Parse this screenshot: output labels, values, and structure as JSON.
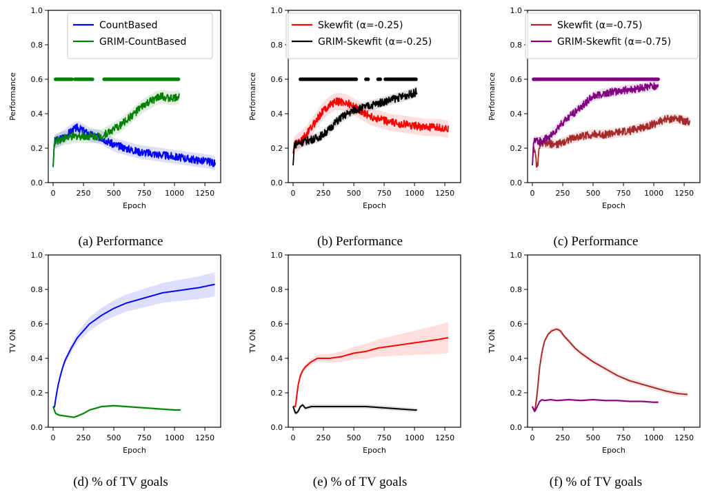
{
  "chart_data": [
    {
      "panel": "a",
      "type": "line",
      "caption": "(a) Performance",
      "xlabel": "Epoch",
      "ylabel": "Performance",
      "xlim": [
        -40,
        1380
      ],
      "ylim": [
        0,
        1
      ],
      "xticks": [
        0,
        250,
        500,
        750,
        1000,
        1250
      ],
      "yticks": [
        0.0,
        0.2,
        0.4,
        0.6,
        0.8,
        1.0
      ],
      "legend_position": "top-center",
      "series": [
        {
          "name": "CountBased",
          "color": "#0000ff",
          "x": [
            0,
            10,
            50,
            100,
            150,
            200,
            250,
            300,
            350,
            400,
            450,
            500,
            600,
            700,
            800,
            900,
            1000,
            1100,
            1200,
            1300,
            1335
          ],
          "y": [
            0.09,
            0.24,
            0.25,
            0.27,
            0.3,
            0.32,
            0.3,
            0.28,
            0.27,
            0.26,
            0.24,
            0.22,
            0.2,
            0.18,
            0.17,
            0.16,
            0.15,
            0.14,
            0.13,
            0.12,
            0.11
          ],
          "band": 0.04
        },
        {
          "name": "GRIM-CountBased",
          "color": "#008000",
          "x": [
            0,
            10,
            50,
            100,
            200,
            300,
            400,
            450,
            500,
            550,
            600,
            650,
            700,
            750,
            800,
            850,
            900,
            950,
            1000,
            1040
          ],
          "y": [
            0.09,
            0.23,
            0.25,
            0.26,
            0.27,
            0.27,
            0.27,
            0.29,
            0.31,
            0.33,
            0.36,
            0.39,
            0.42,
            0.45,
            0.47,
            0.49,
            0.5,
            0.49,
            0.49,
            0.5
          ],
          "band": 0.04,
          "markers": {
            "y": 0.6,
            "ranges": [
              [
                20,
                160
              ],
              [
                180,
                330
              ],
              [
                420,
                1040
              ]
            ]
          }
        }
      ]
    },
    {
      "panel": "b",
      "type": "line",
      "caption": "(b) Performance",
      "xlabel": "Epoch",
      "ylabel": "Performance",
      "xlim": [
        -40,
        1380
      ],
      "ylim": [
        0,
        1
      ],
      "xticks": [
        0,
        250,
        500,
        750,
        1000,
        1250
      ],
      "yticks": [
        0.0,
        0.2,
        0.4,
        0.6,
        0.8,
        1.0
      ],
      "legend_position": "top-right",
      "series": [
        {
          "name": "Skewfit (α=-0.25)",
          "color": "#ff0000",
          "x": [
            0,
            10,
            50,
            100,
            150,
            200,
            250,
            300,
            350,
            400,
            450,
            500,
            550,
            600,
            650,
            700,
            800,
            900,
            1000,
            1100,
            1200,
            1280
          ],
          "y": [
            0.17,
            0.22,
            0.24,
            0.27,
            0.32,
            0.37,
            0.42,
            0.45,
            0.47,
            0.47,
            0.46,
            0.44,
            0.42,
            0.4,
            0.38,
            0.37,
            0.35,
            0.34,
            0.33,
            0.32,
            0.32,
            0.31
          ],
          "band": 0.05
        },
        {
          "name": "GRIM-Skewfit (α=-0.25)",
          "color": "#000000",
          "x": [
            0,
            10,
            50,
            100,
            150,
            200,
            250,
            300,
            350,
            400,
            450,
            500,
            600,
            700,
            800,
            900,
            1000,
            1020
          ],
          "y": [
            0.1,
            0.22,
            0.23,
            0.24,
            0.25,
            0.26,
            0.28,
            0.31,
            0.35,
            0.38,
            0.4,
            0.42,
            0.44,
            0.46,
            0.48,
            0.5,
            0.52,
            0.53
          ],
          "band": 0.03,
          "markers": {
            "y": 0.6,
            "ranges": [
              [
                60,
                420
              ],
              [
                430,
                520
              ],
              [
                600,
                620
              ],
              [
                700,
                720
              ],
              [
                760,
                1020
              ]
            ]
          }
        }
      ]
    },
    {
      "panel": "c",
      "type": "line",
      "caption": "(c) Performance",
      "xlabel": "Epoch",
      "ylabel": "Performance",
      "xlim": [
        -40,
        1380
      ],
      "ylim": [
        0,
        1
      ],
      "xticks": [
        0,
        250,
        500,
        750,
        1000,
        1250
      ],
      "yticks": [
        0.0,
        0.2,
        0.4,
        0.6,
        0.8,
        1.0
      ],
      "legend_position": "top-right",
      "series": [
        {
          "name": "Skewfit (α=-0.75)",
          "color": "#a52a2a",
          "x": [
            0,
            10,
            40,
            60,
            100,
            200,
            300,
            400,
            500,
            600,
            700,
            800,
            900,
            1000,
            1100,
            1200,
            1300
          ],
          "y": [
            0.1,
            0.22,
            0.08,
            0.22,
            0.23,
            0.22,
            0.25,
            0.27,
            0.28,
            0.28,
            0.29,
            0.3,
            0.32,
            0.34,
            0.37,
            0.37,
            0.35
          ],
          "band": 0.03
        },
        {
          "name": "GRIM-Skewfit (α=-0.75)",
          "color": "#800080",
          "x": [
            0,
            10,
            50,
            100,
            150,
            200,
            250,
            300,
            350,
            400,
            450,
            500,
            600,
            700,
            800,
            900,
            1000,
            1040
          ],
          "y": [
            0.1,
            0.24,
            0.24,
            0.25,
            0.27,
            0.31,
            0.35,
            0.38,
            0.41,
            0.44,
            0.47,
            0.5,
            0.52,
            0.53,
            0.54,
            0.55,
            0.56,
            0.57
          ],
          "band": 0.03,
          "markers": {
            "y": 0.6,
            "ranges": [
              [
                10,
                1040
              ]
            ]
          }
        }
      ]
    },
    {
      "panel": "d",
      "type": "line",
      "caption": "(d) % of TV goals",
      "xlabel": "Epoch",
      "ylabel": "TV ON",
      "xlim": [
        -40,
        1380
      ],
      "ylim": [
        0,
        1
      ],
      "xticks": [
        0,
        250,
        500,
        750,
        1000,
        1250
      ],
      "yticks": [
        0.0,
        0.2,
        0.4,
        0.6,
        0.8,
        1.0
      ],
      "series": [
        {
          "name": "",
          "color": "#0000ff",
          "x": [
            0,
            10,
            20,
            40,
            60,
            80,
            100,
            150,
            200,
            250,
            300,
            400,
            500,
            600,
            700,
            800,
            900,
            1000,
            1100,
            1200,
            1335
          ],
          "y": [
            0.12,
            0.11,
            0.16,
            0.24,
            0.3,
            0.35,
            0.39,
            0.46,
            0.52,
            0.56,
            0.6,
            0.65,
            0.69,
            0.72,
            0.74,
            0.76,
            0.78,
            0.79,
            0.8,
            0.81,
            0.83
          ],
          "band_x": [
            0,
            100,
            300,
            600,
            1000,
            1335
          ],
          "band_w": [
            0.01,
            0.02,
            0.04,
            0.05,
            0.06,
            0.07
          ]
        },
        {
          "name": "",
          "color": "#008000",
          "x": [
            0,
            20,
            50,
            100,
            170,
            200,
            250,
            300,
            400,
            500,
            600,
            700,
            800,
            900,
            1000,
            1050
          ],
          "y": [
            0.12,
            0.08,
            0.07,
            0.065,
            0.058,
            0.065,
            0.08,
            0.1,
            0.12,
            0.125,
            0.12,
            0.115,
            0.11,
            0.105,
            0.1,
            0.1
          ],
          "band": 0.008
        }
      ]
    },
    {
      "panel": "e",
      "type": "line",
      "caption": "(e) % of TV goals",
      "xlabel": "Epoch",
      "ylabel": "TV ON",
      "xlim": [
        -40,
        1380
      ],
      "ylim": [
        0,
        1
      ],
      "xticks": [
        0,
        250,
        500,
        750,
        1000,
        1250
      ],
      "yticks": [
        0.0,
        0.2,
        0.4,
        0.6,
        0.8,
        1.0
      ],
      "series": [
        {
          "name": "",
          "color": "#ff0000",
          "x": [
            0,
            20,
            40,
            60,
            80,
            100,
            150,
            200,
            250,
            300,
            400,
            500,
            600,
            700,
            800,
            900,
            1000,
            1100,
            1200,
            1280
          ],
          "y": [
            0.12,
            0.12,
            0.24,
            0.3,
            0.33,
            0.35,
            0.38,
            0.4,
            0.4,
            0.4,
            0.41,
            0.43,
            0.44,
            0.46,
            0.47,
            0.48,
            0.49,
            0.5,
            0.51,
            0.52
          ],
          "band_x": [
            0,
            200,
            400,
            700,
            1000,
            1280
          ],
          "band_w": [
            0.01,
            0.02,
            0.03,
            0.05,
            0.07,
            0.09
          ]
        },
        {
          "name": "",
          "color": "#000000",
          "x": [
            0,
            20,
            40,
            60,
            80,
            100,
            150,
            200,
            300,
            400,
            500,
            600,
            700,
            800,
            900,
            1000,
            1020
          ],
          "y": [
            0.12,
            0.08,
            0.09,
            0.12,
            0.13,
            0.11,
            0.12,
            0.12,
            0.12,
            0.12,
            0.12,
            0.12,
            0.115,
            0.11,
            0.105,
            0.1,
            0.1
          ],
          "band": 0.012
        }
      ]
    },
    {
      "panel": "f",
      "type": "line",
      "caption": "(f) % of TV goals",
      "xlabel": "Epoch",
      "ylabel": "TV ON",
      "xlim": [
        -40,
        1380
      ],
      "ylim": [
        0,
        1
      ],
      "xticks": [
        0,
        250,
        500,
        750,
        1000,
        1250
      ],
      "yticks": [
        0.0,
        0.2,
        0.4,
        0.6,
        0.8,
        1.0
      ],
      "series": [
        {
          "name": "",
          "color": "#a52a2a",
          "x": [
            0,
            20,
            40,
            60,
            80,
            100,
            130,
            160,
            200,
            230,
            260,
            300,
            350,
            400,
            500,
            600,
            700,
            800,
            900,
            1000,
            1100,
            1200,
            1280
          ],
          "y": [
            0.12,
            0.09,
            0.2,
            0.35,
            0.44,
            0.5,
            0.54,
            0.56,
            0.57,
            0.56,
            0.53,
            0.5,
            0.46,
            0.43,
            0.38,
            0.34,
            0.3,
            0.27,
            0.25,
            0.23,
            0.21,
            0.195,
            0.19
          ],
          "band": 0.015
        },
        {
          "name": "",
          "color": "#800080",
          "x": [
            0,
            20,
            40,
            60,
            80,
            100,
            150,
            200,
            300,
            400,
            500,
            600,
            700,
            800,
            900,
            1000,
            1040
          ],
          "y": [
            0.12,
            0.09,
            0.12,
            0.15,
            0.16,
            0.155,
            0.16,
            0.155,
            0.16,
            0.155,
            0.16,
            0.155,
            0.155,
            0.15,
            0.15,
            0.145,
            0.145
          ],
          "band": 0.008
        }
      ]
    }
  ]
}
